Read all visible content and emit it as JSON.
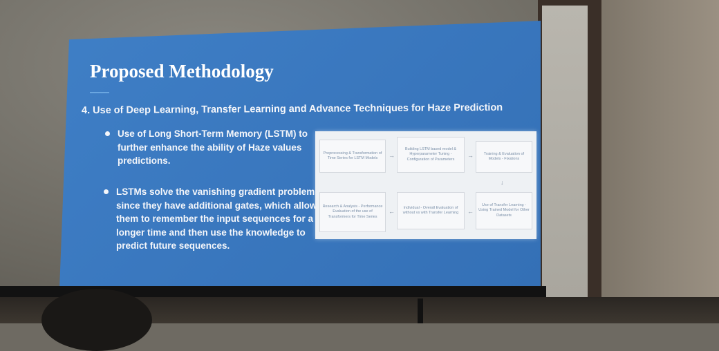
{
  "slide": {
    "title": "Proposed Methodology",
    "heading": "4.  Use of Deep Learning, Transfer Learning and Advance Techniques for Haze Prediction",
    "bullets": [
      "Use of Long Short-Term Memory (LSTM) to further enhance the ability of Haze values predictions.",
      "LSTMs solve the vanishing gradient problem since they have additional gates, which allows them to remember the input sequences for a longer time and then use the knowledge to predict future sequences."
    ]
  },
  "flowchart": {
    "boxes": [
      "Preprocessing & Transformation of Time Series for LSTM Models",
      "Building LSTM based model & Hyperparameter Tuning - Configuration of Parameters",
      "Training & Evaluation of Models - Fixations",
      "Research & Analysis - Performance Evaluation of the use of Transformers for Time Series",
      "Individual - Overall Evaluation of without vs with Transfer Learning",
      "Use of Transfer Learning - Using Trained Model for Other Datasets"
    ],
    "arrows": [
      "→",
      "→",
      "↓",
      "←",
      "←"
    ]
  },
  "colors": {
    "slide_background": "#3a78bf",
    "title_text": "#ffffff",
    "flowchart_background": "#eef1f4"
  }
}
